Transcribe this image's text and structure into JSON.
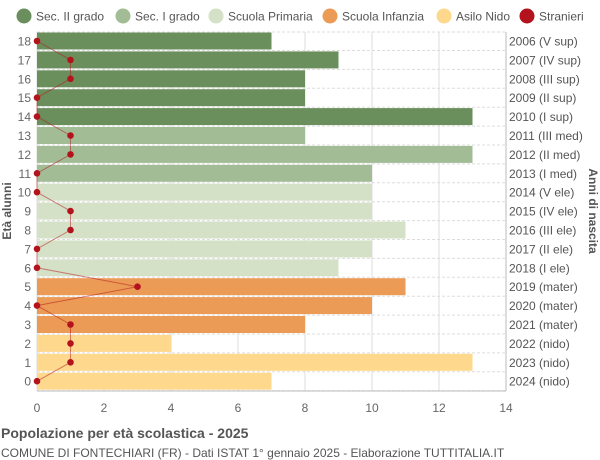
{
  "chart_data": {
    "type": "bar",
    "orientation": "horizontal",
    "title": "Popolazione per età scolastica - 2025",
    "subtitle": "COMUNE DI FONTECHIARI (FR) - Dati ISTAT 1° gennaio 2025 - Elaborazione TUTTITALIA.IT",
    "ylabel": "Età alunni",
    "ylabel_right": "Anni di nascita",
    "xlim": [
      0,
      14
    ],
    "xticks": [
      0,
      2,
      4,
      6,
      8,
      10,
      12,
      14
    ],
    "grid": true,
    "legend_position": "top",
    "legend": [
      {
        "name": "Sec. II grado",
        "color": "#6b8f5c"
      },
      {
        "name": "Sec. I grado",
        "color": "#a2bd96"
      },
      {
        "name": "Scuola Primaria",
        "color": "#d5e1c6"
      },
      {
        "name": "Scuola Infanzia",
        "color": "#eb9b56"
      },
      {
        "name": "Asilo Nido",
        "color": "#fed88c"
      },
      {
        "name": "Stranieri",
        "color": "#b3131c"
      }
    ],
    "ages": [
      18,
      17,
      16,
      15,
      14,
      13,
      12,
      11,
      10,
      9,
      8,
      7,
      6,
      5,
      4,
      3,
      2,
      1,
      0
    ],
    "birth_labels": [
      "2006 (V sup)",
      "2007 (IV sup)",
      "2008 (III sup)",
      "2009 (II sup)",
      "2010 (I sup)",
      "2011 (III med)",
      "2012 (II med)",
      "2013 (I med)",
      "2014 (V ele)",
      "2015 (IV ele)",
      "2016 (III ele)",
      "2017 (II ele)",
      "2018 (I ele)",
      "2019 (mater)",
      "2020 (mater)",
      "2021 (mater)",
      "2022 (nido)",
      "2023 (nido)",
      "2024 (nido)"
    ],
    "categories": [
      0,
      0,
      0,
      0,
      0,
      1,
      1,
      1,
      2,
      2,
      2,
      2,
      2,
      3,
      3,
      3,
      4,
      4,
      4
    ],
    "values": [
      7,
      9,
      8,
      8,
      13,
      8,
      13,
      10,
      10,
      10,
      11,
      10,
      9,
      11,
      10,
      8,
      4,
      13,
      7
    ],
    "stranieri": [
      0,
      1,
      1,
      0,
      0,
      1,
      1,
      0,
      0,
      1,
      1,
      0,
      0,
      3,
      0,
      1,
      1,
      1,
      0
    ]
  }
}
